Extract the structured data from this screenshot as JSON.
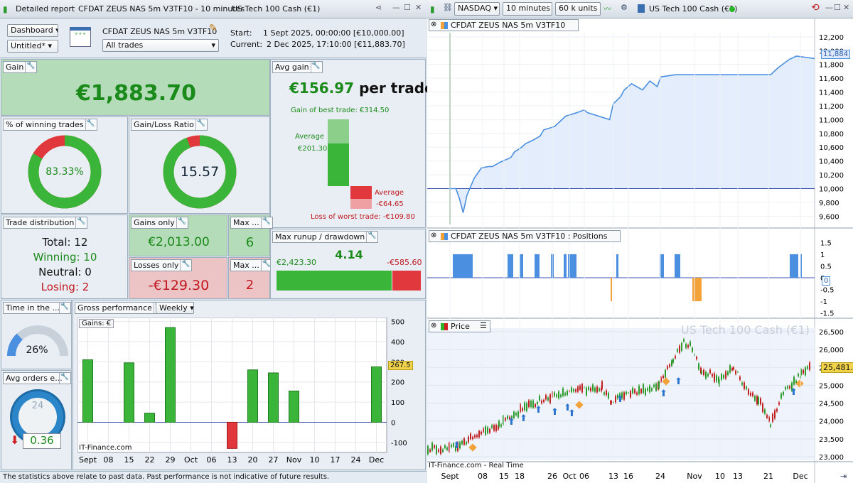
{
  "left_window": {
    "tabs": [
      "Detailed report",
      "CFDAT ZEUS NAS 5m V3TF10 - 10 minutes",
      "US Tech 100 Cash (€1)"
    ]
  },
  "header": {
    "dashboard": "Dashboard",
    "untitled": "Untitled*",
    "system_name": "CFDAT ZEUS NAS 5m V3TF10",
    "filter": "All trades",
    "start_label": "Start:",
    "start_value": "1 Sept 2025, 00:00:00 [€10,000.00]",
    "current_label": "Current:",
    "current_value": "2 Dec 2025, 17:10:00 [€11,883.70]"
  },
  "gain": {
    "label": "Gain",
    "value": "€1,883.70"
  },
  "avg_gain": {
    "label": "Avg gain",
    "value": "€156.97",
    "suffix": "per trade",
    "best": "Gain of best trade: €314.50",
    "avg_pos_label": "Average",
    "avg_pos_value": "€201.30",
    "avg_neg_label": "Average",
    "avg_neg_value": "-€64.65",
    "worst": "Loss of worst trade: -€109.80"
  },
  "winning_pct": {
    "label": "% of winning trades",
    "value": "83.33%",
    "fraction": 0.8333
  },
  "gain_loss_ratio": {
    "label": "Gain/Loss Ratio",
    "value": "15.57",
    "fraction": 0.94
  },
  "distribution": {
    "label": "Trade distribution",
    "total": "Total: 12",
    "winning": "Winning: 10",
    "neutral": "Neutral: 0",
    "losing": "Losing: 2"
  },
  "gains_only": {
    "label": "Gains only",
    "value": "€2,013.00"
  },
  "losses_only": {
    "label": "Losses only",
    "value": "-€129.30"
  },
  "max1": {
    "label": "Max ...",
    "value": "6"
  },
  "max2": {
    "label": "Max ...",
    "value": "2"
  },
  "runup": {
    "label": "Max runup / drawdown",
    "up": "€2,423.30",
    "ratio": "4.14",
    "down": "-€585.60"
  },
  "time_in": {
    "label": "Time in the ...",
    "value": "26%",
    "fraction": 0.26
  },
  "avg_orders": {
    "label": "Avg orders e...",
    "value": "0.36",
    "clock": "24"
  },
  "gross": {
    "label": "Gross performance",
    "period": "Weekly",
    "legend": "Gains: €",
    "watermark": "IT-Finance.com",
    "last": "267.5"
  },
  "footer": "The statistics above relate to past data. Past performance is not indicative of future results.",
  "right_toolbar": {
    "market": "NASDAQ",
    "tf": "10 minutes",
    "units": "60 k units",
    "instrument": "US Tech 100 Cash (€1)"
  },
  "equity_panel": {
    "title": "CFDAT ZEUS NAS 5m V3TF10",
    "last": "11,884"
  },
  "positions_panel": {
    "title": "CFDAT ZEUS NAS 5m V3TF10 : Positions",
    "last": "0"
  },
  "price_panel": {
    "title": "Price",
    "watermark": "US Tech 100 Cash (€1)",
    "source": "IT-Finance.com - Real Time",
    "last": "25,481.9"
  },
  "colors": {
    "win": "#3ab53a",
    "loss": "#e0383c",
    "equity": "#4a8fe0",
    "flat": "#f3a23a"
  },
  "chart_data": [
    {
      "type": "bar",
      "title": "Gross performance",
      "series": [
        {
          "name": "Gains: €",
          "values": [
            310,
            0,
            295,
            45,
            470,
            0,
            0,
            -130,
            260,
            245,
            155,
            0,
            0,
            0,
            275
          ]
        }
      ],
      "categories": [
        "Sept",
        "08",
        "15",
        "22",
        "29",
        "Oct",
        "06",
        "13",
        "20",
        "27",
        "Nov",
        "10",
        "17",
        "24",
        "Dec"
      ],
      "ylim": [
        -150,
        520
      ],
      "yticks": [
        -100,
        0,
        100,
        200,
        300,
        400,
        500
      ]
    },
    {
      "type": "line",
      "title": "CFDAT ZEUS NAS 5m V3TF10",
      "ylim": [
        9480,
        12260
      ],
      "yticks": [
        9600,
        9800,
        10000,
        10200,
        10400,
        10600,
        10800,
        11000,
        11200,
        11400,
        11600,
        11800,
        12000,
        12200
      ],
      "x": [
        0,
        2,
        3,
        4,
        5,
        7,
        9,
        11,
        12,
        14,
        17,
        18,
        20,
        21,
        23,
        25,
        26,
        29,
        32,
        35,
        37,
        38,
        44,
        45,
        47,
        48,
        50,
        53,
        55,
        57,
        58,
        62,
        63,
        65,
        70,
        72,
        74,
        76,
        78,
        82,
        84,
        86,
        88,
        90,
        93,
        95,
        98,
        100
      ],
      "y": [
        10000,
        10000,
        9850,
        9650,
        9900,
        10150,
        10300,
        10320,
        10320,
        10380,
        10450,
        10530,
        10600,
        10650,
        10700,
        10760,
        10850,
        10900,
        11050,
        11100,
        11140,
        11100,
        11000,
        11230,
        11330,
        11430,
        11520,
        11430,
        11560,
        11480,
        11620,
        11650,
        11650,
        11650,
        11650,
        11650,
        11650,
        11650,
        11650,
        11650,
        11650,
        11650,
        11650,
        11750,
        11870,
        11920,
        11900,
        11884
      ],
      "xticks": [
        "Sept",
        "08",
        "15",
        "18",
        "26",
        "Oct",
        "06",
        "13",
        "16",
        "24",
        "Nov",
        "10",
        "13",
        "21",
        "Dec"
      ]
    },
    {
      "type": "bar",
      "title": "Positions",
      "ylim": [
        -1.6,
        1.6
      ],
      "yticks": [
        -1.5,
        -1,
        -0.5,
        0,
        0.5,
        1,
        1.5
      ]
    },
    {
      "type": "line",
      "title": "Price",
      "ylim": [
        22900,
        26600
      ],
      "yticks": [
        23000,
        23500,
        24000,
        24500,
        25000,
        25500,
        26000,
        26500
      ]
    }
  ]
}
